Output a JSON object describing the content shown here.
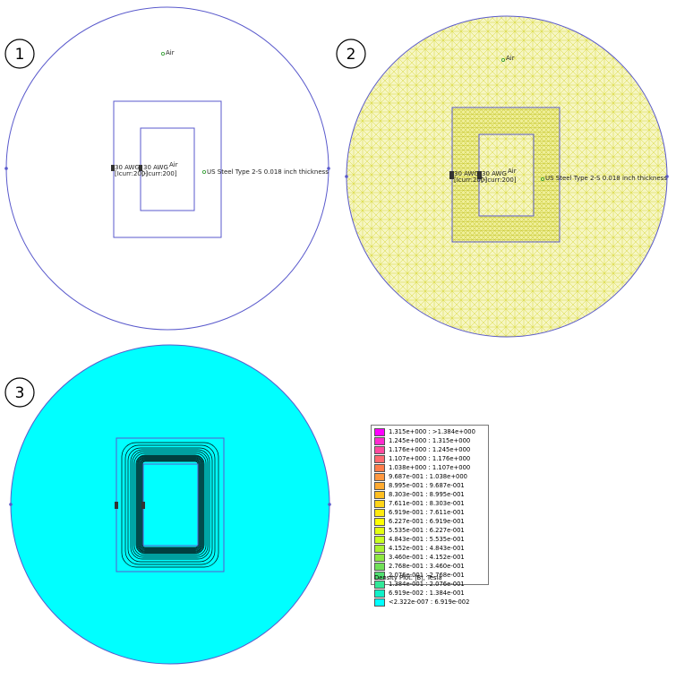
{
  "panels": [
    {
      "number": "1"
    },
    {
      "number": "2"
    },
    {
      "number": "3"
    }
  ],
  "labels": {
    "air": "Air",
    "coil": "30 AWG",
    "circuit_pos": "[Icurr:200]",
    "circuit_neg": "[-Icurr:200]",
    "steel": "US Steel Type 2-S 0.018 inch thickness"
  },
  "colors": {
    "boundary": "#5a5acc",
    "mesh": "#e8e83a",
    "mesh_bg": "#f3f3b8",
    "field_bg": "#00ffff",
    "contour": "#000000"
  },
  "legend": {
    "rows": [
      {
        "color": "#ff00ff",
        "range": "1.315e+000 : >1.384e+000"
      },
      {
        "color": "#ff2bd0",
        "range": "1.245e+000 : 1.315e+000"
      },
      {
        "color": "#ff4aa0",
        "range": "1.176e+000 : 1.245e+000"
      },
      {
        "color": "#ff6a70",
        "range": "1.107e+000 : 1.176e+000"
      },
      {
        "color": "#ff7d4a",
        "range": "1.038e+000 : 1.107e+000"
      },
      {
        "color": "#ff9840",
        "range": "9.687e-001 : 1.038e+000"
      },
      {
        "color": "#ffaa30",
        "range": "8.995e-001 : 9.687e-001"
      },
      {
        "color": "#ffbe20",
        "range": "8.303e-001 : 8.995e-001"
      },
      {
        "color": "#ffd418",
        "range": "7.611e-001 : 8.303e-001"
      },
      {
        "color": "#ffea10",
        "range": "6.919e-001 : 7.611e-001"
      },
      {
        "color": "#ffff00",
        "range": "6.227e-001 : 6.919e-001"
      },
      {
        "color": "#e4ff10",
        "range": "5.535e-001 : 6.227e-001"
      },
      {
        "color": "#c8ff20",
        "range": "4.843e-001 : 5.535e-001"
      },
      {
        "color": "#aaf230",
        "range": "4.152e-001 : 4.843e-001"
      },
      {
        "color": "#8ee840",
        "range": "3.460e-001 : 4.152e-001"
      },
      {
        "color": "#70e058",
        "range": "2.768e-001 : 3.460e-001"
      },
      {
        "color": "#50e070",
        "range": "2.076e-001 : 2.768e-001"
      },
      {
        "color": "#30e898",
        "range": "1.384e-001 : 2.076e-001"
      },
      {
        "color": "#10f0c8",
        "range": "6.919e-002 : 1.384e-001"
      },
      {
        "color": "#00ffff",
        "range": "<2.322e-007 : 6.919e-002"
      }
    ],
    "title": "Density Plot: |B|, Tesla"
  }
}
